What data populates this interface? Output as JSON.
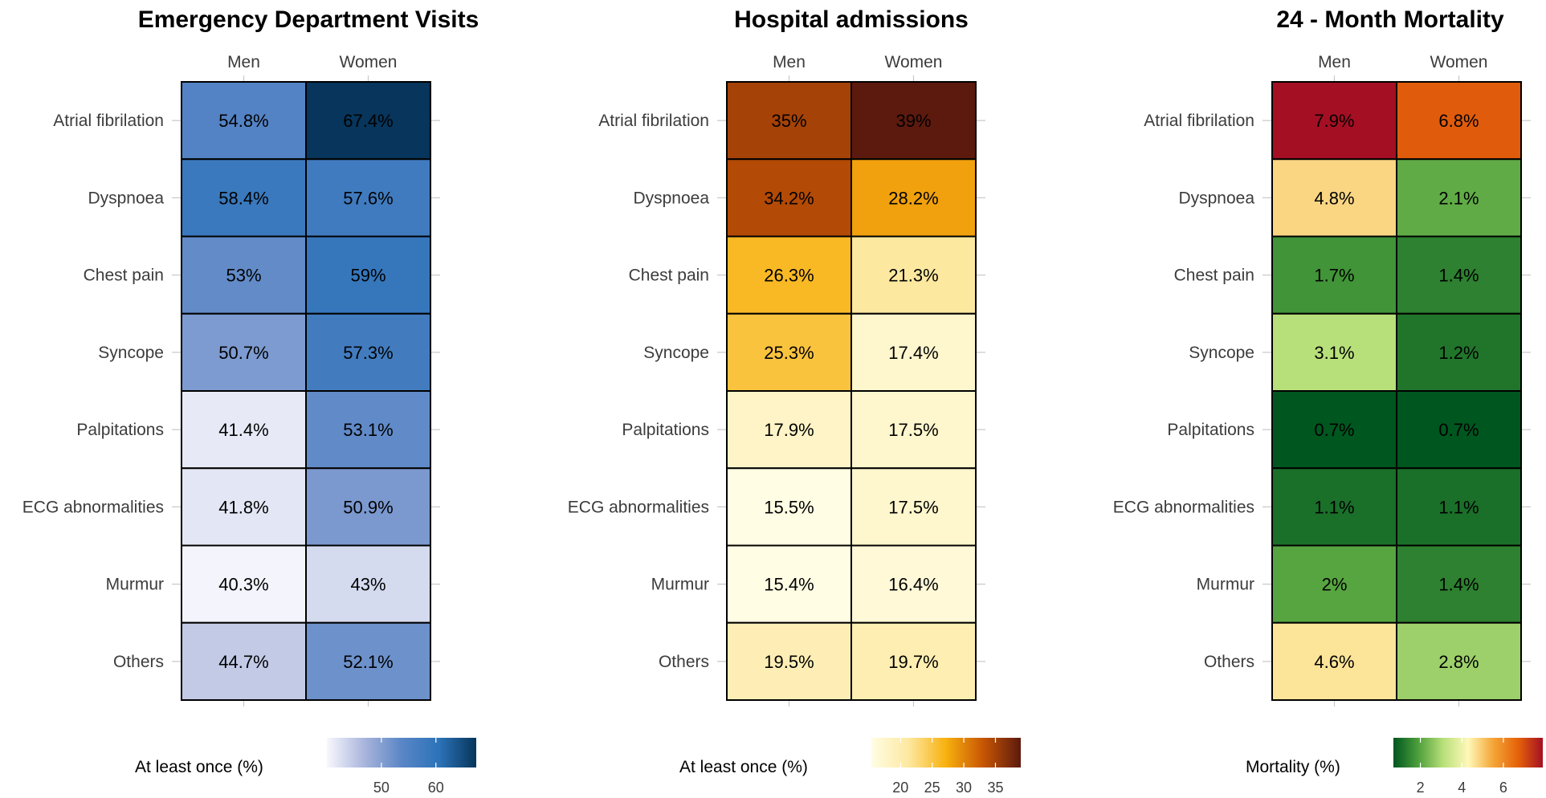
{
  "chart_data": [
    {
      "type": "heatmap",
      "title": "Emergency Department Visits",
      "columns": [
        "Men",
        "Women"
      ],
      "rows": [
        "Atrial fibrilation",
        "Dyspnoea",
        "Chest pain",
        "Syncope",
        "Palpitations",
        "ECG abnormalities",
        "Murmur",
        "Others"
      ],
      "values": [
        [
          54.8,
          67.4
        ],
        [
          58.4,
          57.6
        ],
        [
          53,
          59
        ],
        [
          50.7,
          57.3
        ],
        [
          41.4,
          53.1
        ],
        [
          41.8,
          50.9
        ],
        [
          40.3,
          43
        ],
        [
          44.7,
          52.1
        ]
      ],
      "labels": [
        [
          "54.8%",
          "67.4%"
        ],
        [
          "58.4%",
          "57.6%"
        ],
        [
          "53%",
          "59%"
        ],
        [
          "50.7%",
          "57.3%"
        ],
        [
          "41.4%",
          "53.1%"
        ],
        [
          "41.8%",
          "50.9%"
        ],
        [
          "40.3%",
          "43%"
        ],
        [
          "44.7%",
          "52.1%"
        ]
      ],
      "legend": {
        "title": "At least once (%)",
        "range": [
          40,
          67.4
        ],
        "ticks": [
          "50",
          "60"
        ],
        "tick_values": [
          50,
          60
        ],
        "colors": [
          "#f7f8fd",
          "#aab5dc",
          "#5a86c6",
          "#2c73b9",
          "#07355b"
        ]
      },
      "legend_position": "bottom",
      "grid": false
    },
    {
      "type": "heatmap",
      "title": "Hospital admissions",
      "columns": [
        "Men",
        "Women"
      ],
      "rows": [
        "Atrial fibrilation",
        "Dyspnoea",
        "Chest pain",
        "Syncope",
        "Palpitations",
        "ECG abnormalities",
        "Murmur",
        "Others"
      ],
      "values": [
        [
          35,
          39
        ],
        [
          34.2,
          28.2
        ],
        [
          26.3,
          21.3
        ],
        [
          25.3,
          17.4
        ],
        [
          17.9,
          17.5
        ],
        [
          15.5,
          17.5
        ],
        [
          15.4,
          16.4
        ],
        [
          19.5,
          19.7
        ]
      ],
      "labels": [
        [
          "35%",
          "39%"
        ],
        [
          "34.2%",
          "28.2%"
        ],
        [
          "26.3%",
          "21.3%"
        ],
        [
          "25.3%",
          "17.4%"
        ],
        [
          "17.9%",
          "17.5%"
        ],
        [
          "15.5%",
          "17.5%"
        ],
        [
          "15.4%",
          "16.4%"
        ],
        [
          "19.5%",
          "19.7%"
        ]
      ],
      "legend": {
        "title": "At least once (%)",
        "range": [
          15.4,
          39
        ],
        "ticks": [
          "20",
          "25",
          "30",
          "35"
        ],
        "tick_values": [
          20,
          25,
          30,
          35
        ],
        "colors": [
          "#fffde4",
          "#fde8a0",
          "#f8b10f",
          "#c75504",
          "#5c1a0e"
        ]
      },
      "legend_position": "bottom",
      "grid": false
    },
    {
      "type": "heatmap",
      "title": "24 - Month Mortality",
      "columns": [
        "Men",
        "Women"
      ],
      "rows": [
        "Atrial fibrilation",
        "Dyspnoea",
        "Chest pain",
        "Syncope",
        "Palpitations",
        "ECG abnormalities",
        "Murmur",
        "Others"
      ],
      "values": [
        [
          7.9,
          6.8
        ],
        [
          4.8,
          2.1
        ],
        [
          1.7,
          1.4
        ],
        [
          3.1,
          1.2
        ],
        [
          0.7,
          0.7
        ],
        [
          1.1,
          1.1
        ],
        [
          2,
          1.4
        ],
        [
          4.6,
          2.8
        ]
      ],
      "labels": [
        [
          "7.9%",
          "6.8%"
        ],
        [
          "4.8%",
          "2.1%"
        ],
        [
          "1.7%",
          "1.4%"
        ],
        [
          "3.1%",
          "1.2%"
        ],
        [
          "0.7%",
          "0.7%"
        ],
        [
          "1.1%",
          "1.1%"
        ],
        [
          "2%",
          "1.4%"
        ],
        [
          "4.6%",
          "2.8%"
        ]
      ],
      "legend": {
        "title": "Mortality (%)",
        "range": [
          0.7,
          7.9
        ],
        "ticks": [
          "2",
          "4",
          "6"
        ],
        "tick_values": [
          2,
          4,
          6
        ],
        "colors": [
          "#00561f",
          "#4ea03c",
          "#b8e07a",
          "#fff8b9",
          "#f4a637",
          "#e5630a",
          "#a50f23"
        ]
      },
      "legend_position": "bottom",
      "grid": false
    }
  ]
}
